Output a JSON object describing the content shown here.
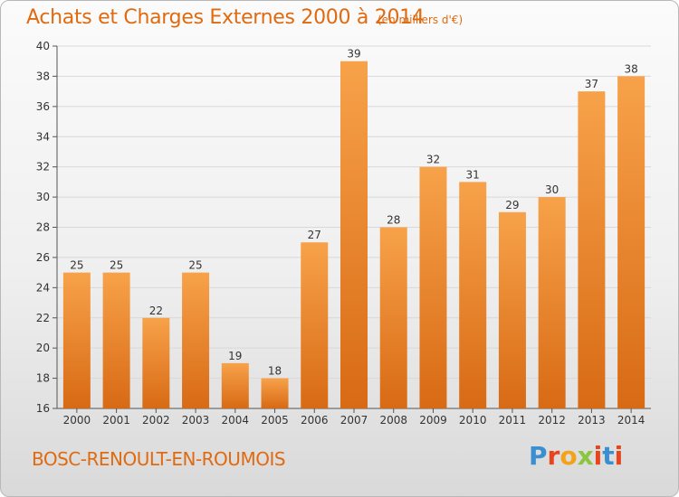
{
  "header": {
    "title": "Achats et Charges Externes 2000 à 2014",
    "subtitle": "(en milliers d'€)"
  },
  "footer": {
    "town": "BOSC-RENOULT-EN-ROUMOIS",
    "logo_text": "Proxiti",
    "logo_colors": [
      "#3a8fd0",
      "#e8451c",
      "#f2a31a",
      "#8cc63f",
      "#e8451c",
      "#3a8fd0",
      "#e8451c"
    ]
  },
  "colors": {
    "accent": "#e06a10",
    "bar_top": "#f7a24a",
    "bar_bottom": "#d86a14",
    "grid": "#d8d8d8"
  },
  "chart_data": {
    "type": "bar",
    "title": "Achats et Charges Externes 2000 à 2014",
    "subtitle": "(en milliers d'€)",
    "xlabel": "",
    "ylabel": "",
    "categories": [
      "2000",
      "2001",
      "2002",
      "2003",
      "2004",
      "2005",
      "2006",
      "2007",
      "2008",
      "2009",
      "2010",
      "2011",
      "2012",
      "2013",
      "2014"
    ],
    "values": [
      25,
      25,
      22,
      25,
      19,
      18,
      27,
      39,
      28,
      32,
      31,
      29,
      30,
      37,
      38
    ],
    "ylim": [
      16,
      40
    ],
    "yticks": [
      16,
      18,
      20,
      22,
      24,
      26,
      28,
      30,
      32,
      34,
      36,
      38,
      40
    ],
    "grid": true,
    "legend": "none"
  }
}
